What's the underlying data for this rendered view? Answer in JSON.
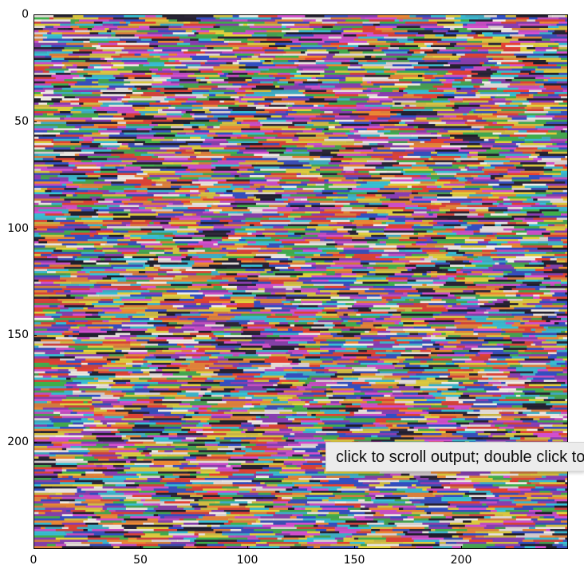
{
  "figure": {
    "image_kind": "random RGB noise, horizontally streaked",
    "x_axis": {
      "range": [
        0,
        250
      ],
      "ticks": [
        {
          "value": 0,
          "label": "0"
        },
        {
          "value": 50,
          "label": "50"
        },
        {
          "value": 100,
          "label": "100"
        },
        {
          "value": 150,
          "label": "150"
        },
        {
          "value": 200,
          "label": "200"
        }
      ]
    },
    "y_axis": {
      "range": [
        0,
        250
      ],
      "inverted": true,
      "ticks": [
        {
          "value": 0,
          "label": "0"
        },
        {
          "value": 50,
          "label": "50"
        },
        {
          "value": 100,
          "label": "100"
        },
        {
          "value": 150,
          "label": "150"
        },
        {
          "value": 200,
          "label": "200"
        }
      ]
    },
    "palette": [
      "#e8412f",
      "#2f4fc6",
      "#3fb24a",
      "#e4d33a",
      "#d64fd0",
      "#35c3d6",
      "#1d1d2b",
      "#f08a32",
      "#8a3db5",
      "#f2efe6"
    ]
  },
  "tooltip": {
    "text": "click to scroll output; double click to hide"
  }
}
